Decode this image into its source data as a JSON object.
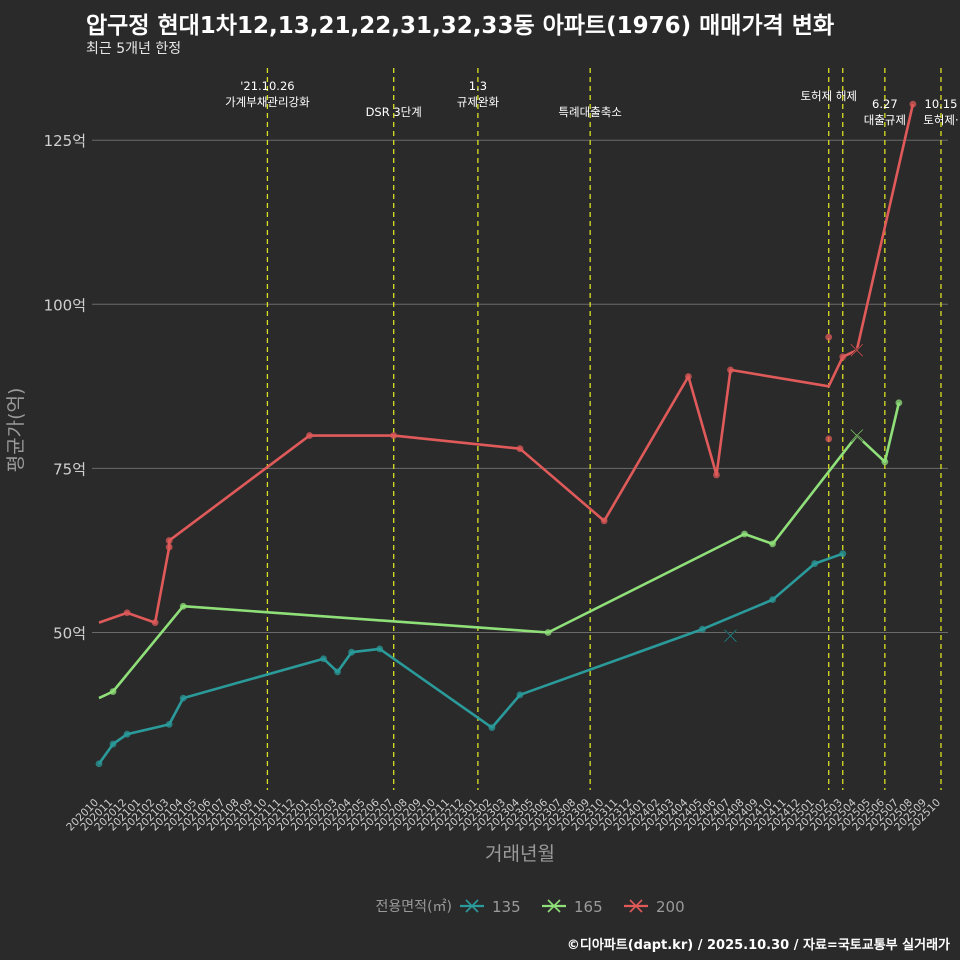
{
  "page": {
    "title": "압구정 현대1차12,13,21,22,31,32,33동 아파트(1976) 매매가격 변화",
    "subtitle": "최근 5개년 한정",
    "caption": "©디아파트(dapt.kr) / 2025.10.30 / 자료=국토교통부 실거래가"
  },
  "colors": {
    "background": "#2b2a2b",
    "grid": "#6a6a6a",
    "axis_text": "#cfcfcf",
    "axis_title": "#9a9a9a",
    "event_line": "#d9e021",
    "event_text": "#ffffff"
  },
  "chart_data": {
    "type": "line",
    "xlabel": "거래년월",
    "ylabel": "평균가(억)",
    "yticks": [
      {
        "value": 50,
        "label": "50억"
      },
      {
        "value": 75,
        "label": "75억"
      },
      {
        "value": 100,
        "label": "100억"
      },
      {
        "value": 125,
        "label": "125억"
      }
    ],
    "ylim": [
      26,
      136
    ],
    "xlim": [
      -0.5,
      60.5
    ],
    "x_start_month": "2020-10",
    "x_ticks_count": 61,
    "legend": {
      "title": "전용면적(㎡)",
      "position": "bottom"
    },
    "events": [
      {
        "x": 12,
        "lines": [
          "'21.10.26",
          "가계부채관리강화"
        ],
        "level": "top"
      },
      {
        "x": 21,
        "lines": [
          "DSR 3단계"
        ],
        "level": "mid"
      },
      {
        "x": 27,
        "lines": [
          "1.3",
          "규제완화"
        ],
        "level": "top"
      },
      {
        "x": 35,
        "lines": [
          "특례대출축소"
        ],
        "level": "mid"
      },
      {
        "x": 52,
        "lines": [
          "토허제 해제"
        ],
        "level": "high"
      },
      {
        "x": 53,
        "lines": [],
        "level": "none"
      },
      {
        "x": 56,
        "lines": [
          "6.27",
          "대출규제"
        ],
        "level": "low"
      },
      {
        "x": 60,
        "lines": [
          "10.15",
          "토허제·"
        ],
        "level": "low"
      }
    ],
    "series": [
      {
        "name": "135",
        "color": "#2a9a9a",
        "line": [
          [
            0,
            30
          ],
          [
            1,
            33
          ],
          [
            2,
            34.5
          ],
          [
            5,
            36
          ],
          [
            6,
            40
          ],
          [
            16,
            46
          ],
          [
            17,
            44
          ],
          [
            18,
            47
          ],
          [
            20,
            47.5
          ],
          [
            28,
            35.5
          ],
          [
            30,
            40.5
          ],
          [
            43,
            50.5
          ],
          [
            48,
            55
          ],
          [
            51,
            60.5
          ],
          [
            53,
            62
          ]
        ],
        "points": [
          [
            0,
            30
          ],
          [
            1,
            33
          ],
          [
            2,
            34.5
          ],
          [
            5,
            36
          ],
          [
            6,
            40
          ],
          [
            16,
            46
          ],
          [
            17,
            44
          ],
          [
            18,
            47
          ],
          [
            20,
            47.5
          ],
          [
            28,
            35.5
          ],
          [
            30,
            40.5
          ],
          [
            43,
            50.5
          ],
          [
            48,
            55
          ],
          [
            51,
            60.5
          ],
          [
            53,
            62
          ]
        ],
        "cross": [
          [
            45,
            49.5
          ]
        ]
      },
      {
        "name": "165",
        "color": "#90e07a",
        "line": [
          [
            0,
            40
          ],
          [
            1,
            41
          ],
          [
            6,
            54
          ],
          [
            32,
            50
          ],
          [
            46,
            65
          ],
          [
            48,
            63.5
          ],
          [
            54,
            80
          ],
          [
            56,
            76
          ],
          [
            57,
            85
          ]
        ],
        "points": [
          [
            1,
            41
          ],
          [
            6,
            54
          ],
          [
            32,
            50
          ],
          [
            46,
            65
          ],
          [
            48,
            63.5
          ],
          [
            56,
            76
          ],
          [
            57,
            85
          ]
        ],
        "cross": [
          [
            54,
            80
          ]
        ]
      },
      {
        "name": "200",
        "color": "#e05a5a",
        "line": [
          [
            0,
            51.5
          ],
          [
            2,
            53
          ],
          [
            4,
            51.5
          ],
          [
            5,
            63
          ],
          [
            5,
            64
          ],
          [
            15,
            80
          ],
          [
            21,
            80
          ],
          [
            30,
            78
          ],
          [
            36,
            67
          ],
          [
            42,
            89
          ],
          [
            44,
            74
          ],
          [
            45,
            90
          ],
          [
            52,
            87.5
          ],
          [
            53,
            92
          ],
          [
            54,
            93
          ],
          [
            58,
            130.5
          ]
        ],
        "points": [
          [
            2,
            53
          ],
          [
            4,
            51.5
          ],
          [
            5,
            63
          ],
          [
            5,
            64
          ],
          [
            15,
            80
          ],
          [
            21,
            80
          ],
          [
            30,
            78
          ],
          [
            36,
            67
          ],
          [
            42,
            89
          ],
          [
            44,
            74
          ],
          [
            45,
            90
          ],
          [
            52,
            95
          ],
          [
            52,
            79.5
          ],
          [
            53,
            92
          ],
          [
            58,
            130.5
          ]
        ],
        "cross": [
          [
            54,
            93
          ]
        ]
      }
    ]
  }
}
